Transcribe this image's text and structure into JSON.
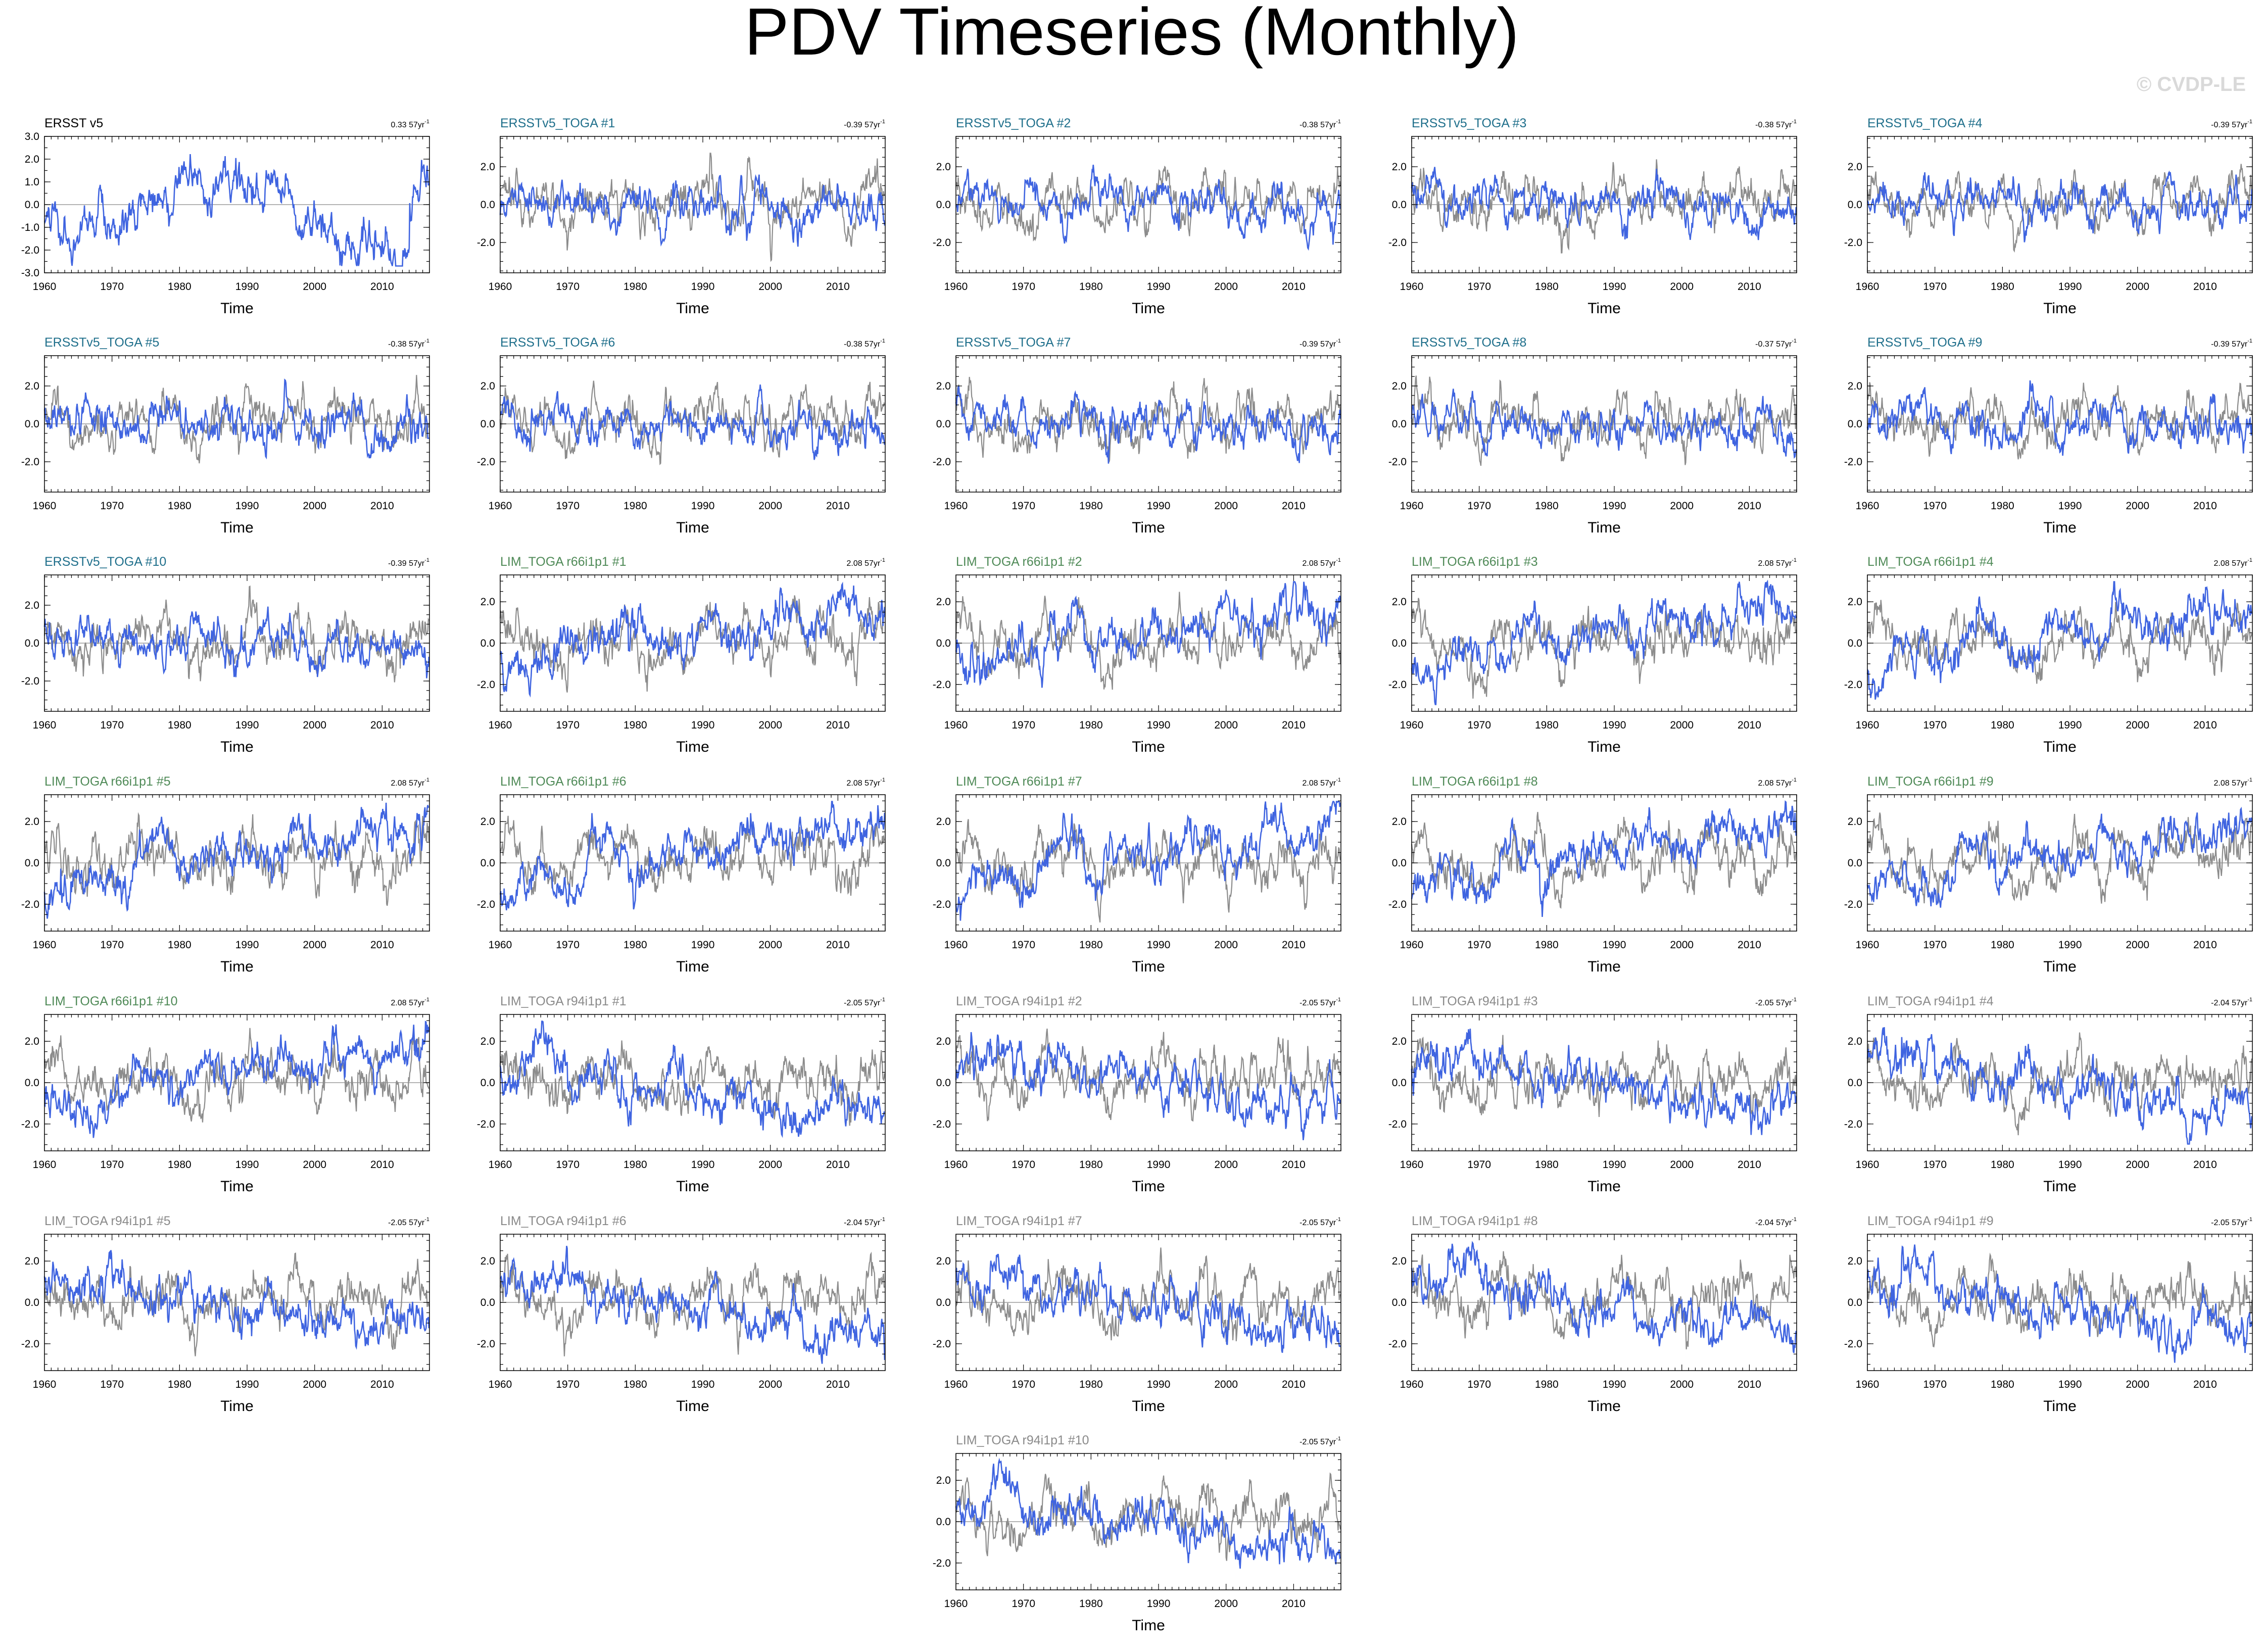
{
  "figure": {
    "title": "PDV Timeseries (Monthly)",
    "watermark": "© CVDP-LE",
    "colors": {
      "background": "#ffffff",
      "frame": "#000000",
      "series_primary": "#3f64e0",
      "series_reference": "#8c8c8c",
      "zero_line": "#9a9a9a",
      "label_obs": "#000000",
      "label_ersst_toga": "#1f6f8b",
      "label_lim_r66": "#4f8a57",
      "label_lim_r94": "#8a8a8a",
      "watermark": "#d9d9d9"
    }
  },
  "chart_data": [
    {
      "type": "line",
      "title": "ERSST v5",
      "trend": "0.33",
      "trend_unit": "57yr",
      "label_group": "obs",
      "show_reference": false,
      "seed": 11,
      "pattern": "obs",
      "xlabel": "Time",
      "xlim": [
        1960,
        2017
      ],
      "xticks": [
        1960,
        1970,
        1980,
        1990,
        2000,
        2010
      ],
      "ylim": [
        -3,
        3
      ],
      "yticks": [
        -3,
        -2,
        -1,
        0,
        1,
        2,
        3
      ],
      "ytick_labels": [
        "-3.0",
        "-2.0",
        "-1.0",
        "0.0",
        "1.0",
        "2.0",
        "3.0"
      ]
    },
    {
      "type": "line",
      "title": "ERSSTv5_TOGA #1",
      "trend": "-0.39",
      "trend_unit": "57yr",
      "label_group": "ersst_toga",
      "show_reference": true,
      "seed": 21,
      "pattern": "toga",
      "xlabel": "Time",
      "xlim": [
        1960,
        2017
      ],
      "xticks": [
        1960,
        1970,
        1980,
        1990,
        2000,
        2010
      ],
      "ylim": [
        -3.6,
        3.6
      ],
      "yticks": [
        -2,
        0,
        2
      ],
      "ytick_labels": [
        "-2.0",
        "0.0",
        "2.0"
      ]
    },
    {
      "type": "line",
      "title": "ERSSTv5_TOGA #2",
      "trend": "-0.38",
      "trend_unit": "57yr",
      "label_group": "ersst_toga",
      "show_reference": true,
      "seed": 22,
      "pattern": "toga",
      "xlabel": "Time",
      "xlim": [
        1960,
        2017
      ],
      "xticks": [
        1960,
        1970,
        1980,
        1990,
        2000,
        2010
      ],
      "ylim": [
        -3.6,
        3.6
      ],
      "yticks": [
        -2,
        0,
        2
      ],
      "ytick_labels": [
        "-2.0",
        "0.0",
        "2.0"
      ]
    },
    {
      "type": "line",
      "title": "ERSSTv5_TOGA #3",
      "trend": "-0.38",
      "trend_unit": "57yr",
      "label_group": "ersst_toga",
      "show_reference": true,
      "seed": 23,
      "pattern": "toga",
      "xlabel": "Time",
      "xlim": [
        1960,
        2017
      ],
      "xticks": [
        1960,
        1970,
        1980,
        1990,
        2000,
        2010
      ],
      "ylim": [
        -3.6,
        3.6
      ],
      "yticks": [
        -2,
        0,
        2
      ],
      "ytick_labels": [
        "-2.0",
        "0.0",
        "2.0"
      ]
    },
    {
      "type": "line",
      "title": "ERSSTv5_TOGA #4",
      "trend": "-0.39",
      "trend_unit": "57yr",
      "label_group": "ersst_toga",
      "show_reference": true,
      "seed": 24,
      "pattern": "toga",
      "xlabel": "Time",
      "xlim": [
        1960,
        2017
      ],
      "xticks": [
        1960,
        1970,
        1980,
        1990,
        2000,
        2010
      ],
      "ylim": [
        -3.6,
        3.6
      ],
      "yticks": [
        -2,
        0,
        2
      ],
      "ytick_labels": [
        "-2.0",
        "0.0",
        "2.0"
      ]
    },
    {
      "type": "line",
      "title": "ERSSTv5_TOGA #5",
      "trend": "-0.38",
      "trend_unit": "57yr",
      "label_group": "ersst_toga",
      "show_reference": true,
      "seed": 25,
      "pattern": "toga",
      "xlabel": "Time",
      "xlim": [
        1960,
        2017
      ],
      "xticks": [
        1960,
        1970,
        1980,
        1990,
        2000,
        2010
      ],
      "ylim": [
        -3.6,
        3.6
      ],
      "yticks": [
        -2,
        0,
        2
      ],
      "ytick_labels": [
        "-2.0",
        "0.0",
        "2.0"
      ]
    },
    {
      "type": "line",
      "title": "ERSSTv5_TOGA #6",
      "trend": "-0.38",
      "trend_unit": "57yr",
      "label_group": "ersst_toga",
      "show_reference": true,
      "seed": 26,
      "pattern": "toga",
      "xlabel": "Time",
      "xlim": [
        1960,
        2017
      ],
      "xticks": [
        1960,
        1970,
        1980,
        1990,
        2000,
        2010
      ],
      "ylim": [
        -3.6,
        3.6
      ],
      "yticks": [
        -2,
        0,
        2
      ],
      "ytick_labels": [
        "-2.0",
        "0.0",
        "2.0"
      ]
    },
    {
      "type": "line",
      "title": "ERSSTv5_TOGA #7",
      "trend": "-0.39",
      "trend_unit": "57yr",
      "label_group": "ersst_toga",
      "show_reference": true,
      "seed": 27,
      "pattern": "toga",
      "xlabel": "Time",
      "xlim": [
        1960,
        2017
      ],
      "xticks": [
        1960,
        1970,
        1980,
        1990,
        2000,
        2010
      ],
      "ylim": [
        -3.6,
        3.6
      ],
      "yticks": [
        -2,
        0,
        2
      ],
      "ytick_labels": [
        "-2.0",
        "0.0",
        "2.0"
      ]
    },
    {
      "type": "line",
      "title": "ERSSTv5_TOGA #8",
      "trend": "-0.37",
      "trend_unit": "57yr",
      "label_group": "ersst_toga",
      "show_reference": true,
      "seed": 28,
      "pattern": "toga",
      "xlabel": "Time",
      "xlim": [
        1960,
        2017
      ],
      "xticks": [
        1960,
        1970,
        1980,
        1990,
        2000,
        2010
      ],
      "ylim": [
        -3.6,
        3.6
      ],
      "yticks": [
        -2,
        0,
        2
      ],
      "ytick_labels": [
        "-2.0",
        "0.0",
        "2.0"
      ]
    },
    {
      "type": "line",
      "title": "ERSSTv5_TOGA #9",
      "trend": "-0.39",
      "trend_unit": "57yr",
      "label_group": "ersst_toga",
      "show_reference": true,
      "seed": 29,
      "pattern": "toga",
      "xlabel": "Time",
      "xlim": [
        1960,
        2017
      ],
      "xticks": [
        1960,
        1970,
        1980,
        1990,
        2000,
        2010
      ],
      "ylim": [
        -3.6,
        3.6
      ],
      "yticks": [
        -2,
        0,
        2
      ],
      "ytick_labels": [
        "-2.0",
        "0.0",
        "2.0"
      ]
    },
    {
      "type": "line",
      "title": "ERSSTv5_TOGA #10",
      "trend": "-0.39",
      "trend_unit": "57yr",
      "label_group": "ersst_toga",
      "show_reference": true,
      "seed": 30,
      "pattern": "toga",
      "xlabel": "Time",
      "xlim": [
        1960,
        2017
      ],
      "xticks": [
        1960,
        1970,
        1980,
        1990,
        2000,
        2010
      ],
      "ylim": [
        -3.6,
        3.6
      ],
      "yticks": [
        -2,
        0,
        2
      ],
      "ytick_labels": [
        "-2.0",
        "0.0",
        "2.0"
      ]
    },
    {
      "type": "line",
      "title": "LIM_TOGA r66i1p1 #1",
      "trend": "2.08",
      "trend_unit": "57yr",
      "label_group": "lim_r66",
      "show_reference": true,
      "seed": 41,
      "pattern": "r66",
      "xlabel": "Time",
      "xlim": [
        1960,
        2017
      ],
      "xticks": [
        1960,
        1970,
        1980,
        1990,
        2000,
        2010
      ],
      "ylim": [
        -3.3,
        3.3
      ],
      "yticks": [
        -2,
        0,
        2
      ],
      "ytick_labels": [
        "-2.0",
        "0.0",
        "2.0"
      ]
    },
    {
      "type": "line",
      "title": "LIM_TOGA r66i1p1 #2",
      "trend": "2.08",
      "trend_unit": "57yr",
      "label_group": "lim_r66",
      "show_reference": true,
      "seed": 42,
      "pattern": "r66",
      "xlabel": "Time",
      "xlim": [
        1960,
        2017
      ],
      "xticks": [
        1960,
        1970,
        1980,
        1990,
        2000,
        2010
      ],
      "ylim": [
        -3.3,
        3.3
      ],
      "yticks": [
        -2,
        0,
        2
      ],
      "ytick_labels": [
        "-2.0",
        "0.0",
        "2.0"
      ]
    },
    {
      "type": "line",
      "title": "LIM_TOGA r66i1p1 #3",
      "trend": "2.08",
      "trend_unit": "57yr",
      "label_group": "lim_r66",
      "show_reference": true,
      "seed": 43,
      "pattern": "r66",
      "xlabel": "Time",
      "xlim": [
        1960,
        2017
      ],
      "xticks": [
        1960,
        1970,
        1980,
        1990,
        2000,
        2010
      ],
      "ylim": [
        -3.3,
        3.3
      ],
      "yticks": [
        -2,
        0,
        2
      ],
      "ytick_labels": [
        "-2.0",
        "0.0",
        "2.0"
      ]
    },
    {
      "type": "line",
      "title": "LIM_TOGA r66i1p1 #4",
      "trend": "2.08",
      "trend_unit": "57yr",
      "label_group": "lim_r66",
      "show_reference": true,
      "seed": 44,
      "pattern": "r66",
      "xlabel": "Time",
      "xlim": [
        1960,
        2017
      ],
      "xticks": [
        1960,
        1970,
        1980,
        1990,
        2000,
        2010
      ],
      "ylim": [
        -3.3,
        3.3
      ],
      "yticks": [
        -2,
        0,
        2
      ],
      "ytick_labels": [
        "-2.0",
        "0.0",
        "2.0"
      ]
    },
    {
      "type": "line",
      "title": "LIM_TOGA r66i1p1 #5",
      "trend": "2.08",
      "trend_unit": "57yr",
      "label_group": "lim_r66",
      "show_reference": true,
      "seed": 45,
      "pattern": "r66",
      "xlabel": "Time",
      "xlim": [
        1960,
        2017
      ],
      "xticks": [
        1960,
        1970,
        1980,
        1990,
        2000,
        2010
      ],
      "ylim": [
        -3.3,
        3.3
      ],
      "yticks": [
        -2,
        0,
        2
      ],
      "ytick_labels": [
        "-2.0",
        "0.0",
        "2.0"
      ]
    },
    {
      "type": "line",
      "title": "LIM_TOGA r66i1p1 #6",
      "trend": "2.08",
      "trend_unit": "57yr",
      "label_group": "lim_r66",
      "show_reference": true,
      "seed": 46,
      "pattern": "r66",
      "xlabel": "Time",
      "xlim": [
        1960,
        2017
      ],
      "xticks": [
        1960,
        1970,
        1980,
        1990,
        2000,
        2010
      ],
      "ylim": [
        -3.3,
        3.3
      ],
      "yticks": [
        -2,
        0,
        2
      ],
      "ytick_labels": [
        "-2.0",
        "0.0",
        "2.0"
      ]
    },
    {
      "type": "line",
      "title": "LIM_TOGA r66i1p1 #7",
      "trend": "2.08",
      "trend_unit": "57yr",
      "label_group": "lim_r66",
      "show_reference": true,
      "seed": 47,
      "pattern": "r66",
      "xlabel": "Time",
      "xlim": [
        1960,
        2017
      ],
      "xticks": [
        1960,
        1970,
        1980,
        1990,
        2000,
        2010
      ],
      "ylim": [
        -3.3,
        3.3
      ],
      "yticks": [
        -2,
        0,
        2
      ],
      "ytick_labels": [
        "-2.0",
        "0.0",
        "2.0"
      ]
    },
    {
      "type": "line",
      "title": "LIM_TOGA r66i1p1 #8",
      "trend": "2.08",
      "trend_unit": "57yr",
      "label_group": "lim_r66",
      "show_reference": true,
      "seed": 48,
      "pattern": "r66",
      "xlabel": "Time",
      "xlim": [
        1960,
        2017
      ],
      "xticks": [
        1960,
        1970,
        1980,
        1990,
        2000,
        2010
      ],
      "ylim": [
        -3.3,
        3.3
      ],
      "yticks": [
        -2,
        0,
        2
      ],
      "ytick_labels": [
        "-2.0",
        "0.0",
        "2.0"
      ]
    },
    {
      "type": "line",
      "title": "LIM_TOGA r66i1p1 #9",
      "trend": "2.08",
      "trend_unit": "57yr",
      "label_group": "lim_r66",
      "show_reference": true,
      "seed": 49,
      "pattern": "r66",
      "xlabel": "Time",
      "xlim": [
        1960,
        2017
      ],
      "xticks": [
        1960,
        1970,
        1980,
        1990,
        2000,
        2010
      ],
      "ylim": [
        -3.3,
        3.3
      ],
      "yticks": [
        -2,
        0,
        2
      ],
      "ytick_labels": [
        "-2.0",
        "0.0",
        "2.0"
      ]
    },
    {
      "type": "line",
      "title": "LIM_TOGA r66i1p1 #10",
      "trend": "2.08",
      "trend_unit": "57yr",
      "label_group": "lim_r66",
      "show_reference": true,
      "seed": 50,
      "pattern": "r66",
      "xlabel": "Time",
      "xlim": [
        1960,
        2017
      ],
      "xticks": [
        1960,
        1970,
        1980,
        1990,
        2000,
        2010
      ],
      "ylim": [
        -3.3,
        3.3
      ],
      "yticks": [
        -2,
        0,
        2
      ],
      "ytick_labels": [
        "-2.0",
        "0.0",
        "2.0"
      ]
    },
    {
      "type": "line",
      "title": "LIM_TOGA r94i1p1 #1",
      "trend": "-2.05",
      "trend_unit": "57yr",
      "label_group": "lim_r94",
      "show_reference": true,
      "seed": 61,
      "pattern": "r94",
      "xlabel": "Time",
      "xlim": [
        1960,
        2017
      ],
      "xticks": [
        1960,
        1970,
        1980,
        1990,
        2000,
        2010
      ],
      "ylim": [
        -3.3,
        3.3
      ],
      "yticks": [
        -2,
        0,
        2
      ],
      "ytick_labels": [
        "-2.0",
        "0.0",
        "2.0"
      ]
    },
    {
      "type": "line",
      "title": "LIM_TOGA r94i1p1 #2",
      "trend": "-2.05",
      "trend_unit": "57yr",
      "label_group": "lim_r94",
      "show_reference": true,
      "seed": 62,
      "pattern": "r94",
      "xlabel": "Time",
      "xlim": [
        1960,
        2017
      ],
      "xticks": [
        1960,
        1970,
        1980,
        1990,
        2000,
        2010
      ],
      "ylim": [
        -3.3,
        3.3
      ],
      "yticks": [
        -2,
        0,
        2
      ],
      "ytick_labels": [
        "-2.0",
        "0.0",
        "2.0"
      ]
    },
    {
      "type": "line",
      "title": "LIM_TOGA r94i1p1 #3",
      "trend": "-2.05",
      "trend_unit": "57yr",
      "label_group": "lim_r94",
      "show_reference": true,
      "seed": 63,
      "pattern": "r94",
      "xlabel": "Time",
      "xlim": [
        1960,
        2017
      ],
      "xticks": [
        1960,
        1970,
        1980,
        1990,
        2000,
        2010
      ],
      "ylim": [
        -3.3,
        3.3
      ],
      "yticks": [
        -2,
        0,
        2
      ],
      "ytick_labels": [
        "-2.0",
        "0.0",
        "2.0"
      ]
    },
    {
      "type": "line",
      "title": "LIM_TOGA r94i1p1 #4",
      "trend": "-2.04",
      "trend_unit": "57yr",
      "label_group": "lim_r94",
      "show_reference": true,
      "seed": 64,
      "pattern": "r94",
      "xlabel": "Time",
      "xlim": [
        1960,
        2017
      ],
      "xticks": [
        1960,
        1970,
        1980,
        1990,
        2000,
        2010
      ],
      "ylim": [
        -3.3,
        3.3
      ],
      "yticks": [
        -2,
        0,
        2
      ],
      "ytick_labels": [
        "-2.0",
        "0.0",
        "2.0"
      ]
    },
    {
      "type": "line",
      "title": "LIM_TOGA r94i1p1 #5",
      "trend": "-2.05",
      "trend_unit": "57yr",
      "label_group": "lim_r94",
      "show_reference": true,
      "seed": 65,
      "pattern": "r94",
      "xlabel": "Time",
      "xlim": [
        1960,
        2017
      ],
      "xticks": [
        1960,
        1970,
        1980,
        1990,
        2000,
        2010
      ],
      "ylim": [
        -3.3,
        3.3
      ],
      "yticks": [
        -2,
        0,
        2
      ],
      "ytick_labels": [
        "-2.0",
        "0.0",
        "2.0"
      ]
    },
    {
      "type": "line",
      "title": "LIM_TOGA r94i1p1 #6",
      "trend": "-2.04",
      "trend_unit": "57yr",
      "label_group": "lim_r94",
      "show_reference": true,
      "seed": 66,
      "pattern": "r94",
      "xlabel": "Time",
      "xlim": [
        1960,
        2017
      ],
      "xticks": [
        1960,
        1970,
        1980,
        1990,
        2000,
        2010
      ],
      "ylim": [
        -3.3,
        3.3
      ],
      "yticks": [
        -2,
        0,
        2
      ],
      "ytick_labels": [
        "-2.0",
        "0.0",
        "2.0"
      ]
    },
    {
      "type": "line",
      "title": "LIM_TOGA r94i1p1 #7",
      "trend": "-2.05",
      "trend_unit": "57yr",
      "label_group": "lim_r94",
      "show_reference": true,
      "seed": 67,
      "pattern": "r94",
      "xlabel": "Time",
      "xlim": [
        1960,
        2017
      ],
      "xticks": [
        1960,
        1970,
        1980,
        1990,
        2000,
        2010
      ],
      "ylim": [
        -3.3,
        3.3
      ],
      "yticks": [
        -2,
        0,
        2
      ],
      "ytick_labels": [
        "-2.0",
        "0.0",
        "2.0"
      ]
    },
    {
      "type": "line",
      "title": "LIM_TOGA r94i1p1 #8",
      "trend": "-2.04",
      "trend_unit": "57yr",
      "label_group": "lim_r94",
      "show_reference": true,
      "seed": 68,
      "pattern": "r94",
      "xlabel": "Time",
      "xlim": [
        1960,
        2017
      ],
      "xticks": [
        1960,
        1970,
        1980,
        1990,
        2000,
        2010
      ],
      "ylim": [
        -3.3,
        3.3
      ],
      "yticks": [
        -2,
        0,
        2
      ],
      "ytick_labels": [
        "-2.0",
        "0.0",
        "2.0"
      ]
    },
    {
      "type": "line",
      "title": "LIM_TOGA r94i1p1 #9",
      "trend": "-2.05",
      "trend_unit": "57yr",
      "label_group": "lim_r94",
      "show_reference": true,
      "seed": 69,
      "pattern": "r94",
      "xlabel": "Time",
      "xlim": [
        1960,
        2017
      ],
      "xticks": [
        1960,
        1970,
        1980,
        1990,
        2000,
        2010
      ],
      "ylim": [
        -3.3,
        3.3
      ],
      "yticks": [
        -2,
        0,
        2
      ],
      "ytick_labels": [
        "-2.0",
        "0.0",
        "2.0"
      ]
    },
    {
      "type": "line",
      "title": "LIM_TOGA r94i1p1 #10",
      "trend": "-2.05",
      "trend_unit": "57yr",
      "label_group": "lim_r94",
      "show_reference": true,
      "seed": 70,
      "pattern": "r94",
      "xlabel": "Time",
      "xlim": [
        1960,
        2017
      ],
      "xticks": [
        1960,
        1970,
        1980,
        1990,
        2000,
        2010
      ],
      "ylim": [
        -3.3,
        3.3
      ],
      "yticks": [
        -2,
        0,
        2
      ],
      "ytick_labels": [
        "-2.0",
        "0.0",
        "2.0"
      ]
    }
  ]
}
